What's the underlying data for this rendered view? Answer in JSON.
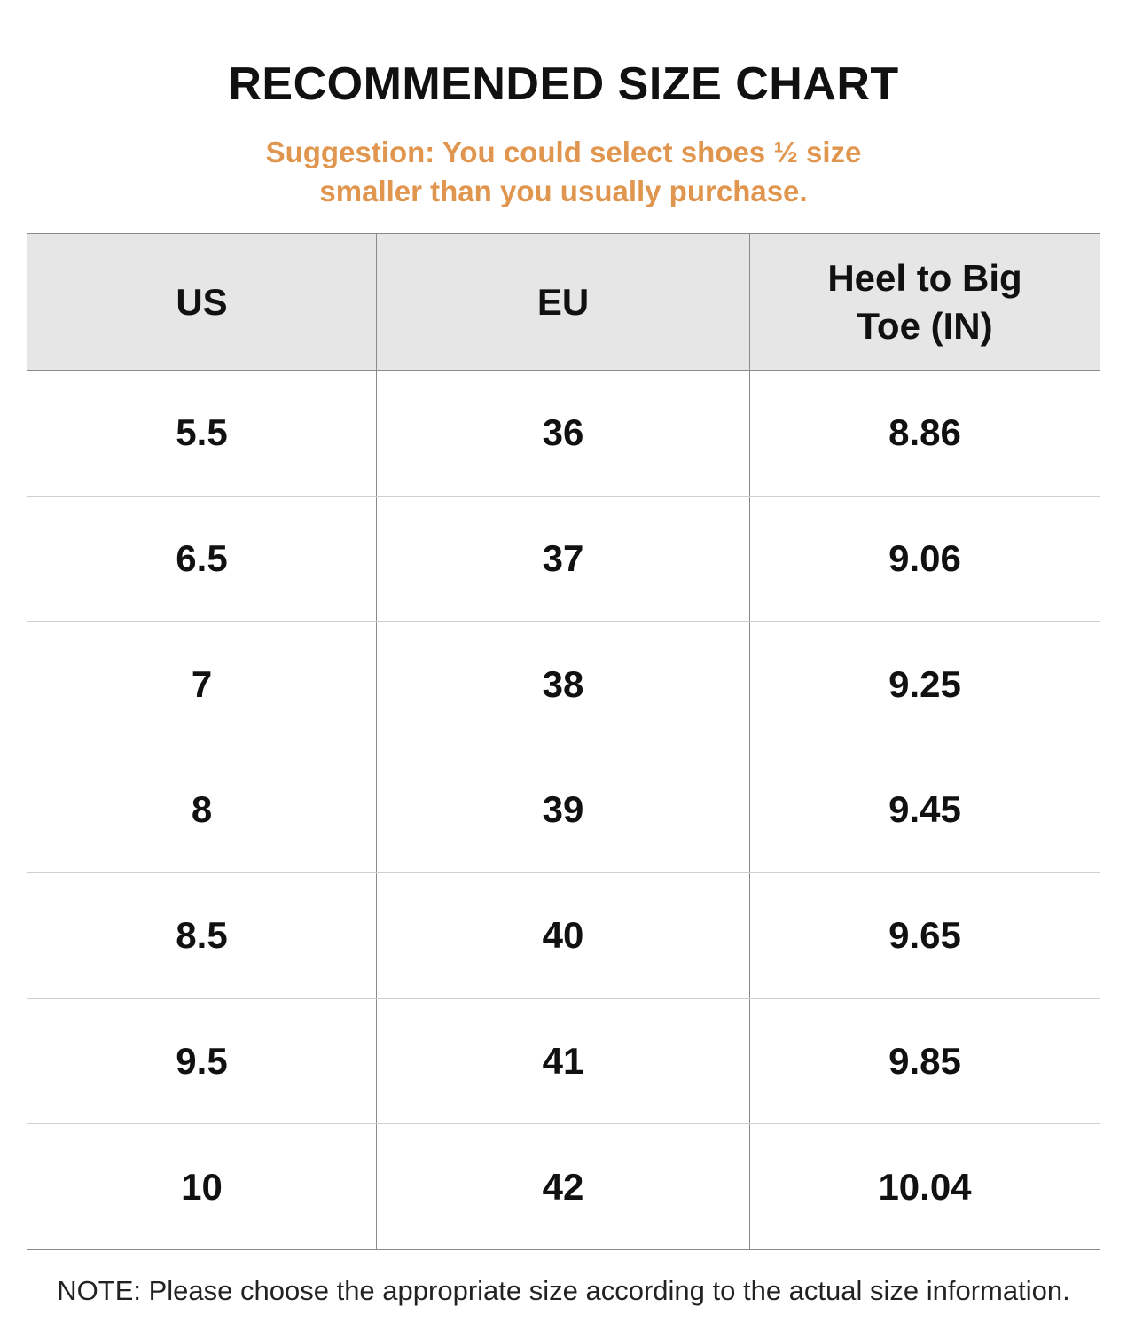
{
  "title": "RECOMMENDED SIZE CHART",
  "suggestion": {
    "line1": "Suggestion: You could select shoes ½ size",
    "line2": "smaller than you usually purchase."
  },
  "table": {
    "headers": {
      "us": "US",
      "eu": "EU",
      "heel_line1": "Heel to Big",
      "heel_line2": "Toe (IN)"
    },
    "rows": [
      {
        "us": "5.5",
        "eu": "36",
        "heel": "8.86"
      },
      {
        "us": "6.5",
        "eu": "37",
        "heel": "9.06"
      },
      {
        "us": "7",
        "eu": "38",
        "heel": "9.25"
      },
      {
        "us": "8",
        "eu": "39",
        "heel": "9.45"
      },
      {
        "us": "8.5",
        "eu": "40",
        "heel": "9.65"
      },
      {
        "us": "9.5",
        "eu": "41",
        "heel": "9.85"
      },
      {
        "us": "10",
        "eu": "42",
        "heel": "10.04"
      }
    ]
  },
  "note": "NOTE: Please choose the appropriate size according to the actual size information.",
  "colors": {
    "suggestion": "#e0964e",
    "header_bg": "#e6e6e6",
    "border": "#8a8a8a"
  }
}
